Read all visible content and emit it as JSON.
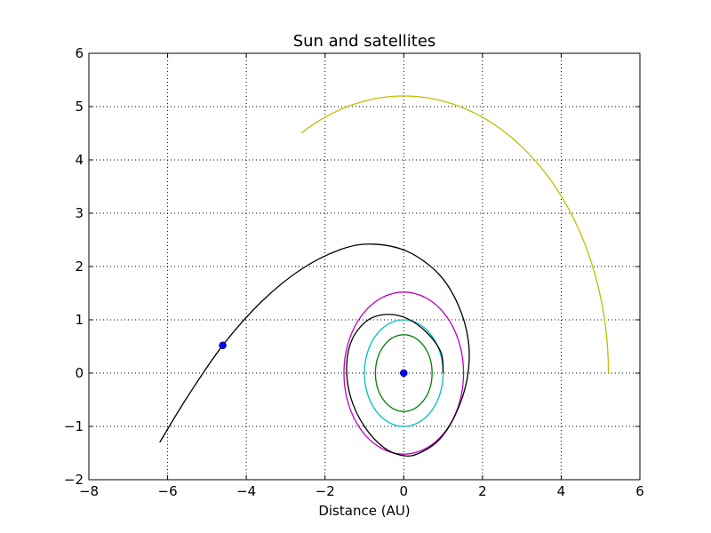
{
  "chart_data": {
    "type": "line",
    "title": "Sun and satellites",
    "xlabel": "Distance (AU)",
    "ylabel": "",
    "xlim": [
      -8,
      6
    ],
    "ylim": [
      -2,
      6
    ],
    "xticks": [
      -8,
      -6,
      -4,
      -2,
      0,
      2,
      4,
      6
    ],
    "yticks": [
      -2,
      -1,
      0,
      1,
      2,
      3,
      4,
      5,
      6
    ],
    "xtick_labels": [
      "−8",
      "−6",
      "−4",
      "−2",
      "0",
      "2",
      "4",
      "6"
    ],
    "ytick_labels": [
      "−2",
      "−1",
      "0",
      "1",
      "2",
      "3",
      "4",
      "5",
      "6"
    ],
    "grid": true,
    "orbits": [
      {
        "color": "#008000",
        "shape": "ellipse",
        "center": [
          0,
          0
        ],
        "rx": 0.72,
        "ry": 0.72
      },
      {
        "color": "#00bfbf",
        "shape": "ellipse",
        "center": [
          0,
          0
        ],
        "rx": 1.0,
        "ry": 1.0
      },
      {
        "color": "#bf00bf",
        "shape": "ellipse",
        "center": [
          0,
          0
        ],
        "rx": 1.52,
        "ry": 1.52
      },
      {
        "color": "#bfbf00",
        "shape": "arc",
        "center": [
          0,
          0
        ],
        "radius": 5.2,
        "start_deg": 0,
        "end_deg": 121
      }
    ],
    "spiral_trajectory": {
      "color": "#000000",
      "x": [
        -6.2,
        -5.5,
        -4.6,
        -3.6,
        -2.6,
        -1.6,
        -0.8,
        0.1,
        0.9,
        1.4,
        1.65,
        1.6,
        1.3,
        0.9,
        0.4,
        0.0,
        -0.5,
        -1.0,
        -1.35,
        -1.45,
        -1.3,
        -0.9,
        -0.4,
        0.1,
        0.6,
        0.95,
        1.0
      ],
      "y": [
        -1.3,
        -0.45,
        0.52,
        1.35,
        1.95,
        2.32,
        2.42,
        2.28,
        1.85,
        1.25,
        0.55,
        -0.15,
        -0.8,
        -1.25,
        -1.5,
        -1.55,
        -1.4,
        -1.0,
        -0.45,
        0.15,
        0.65,
        1.0,
        1.1,
        1.02,
        0.75,
        0.38,
        0.0
      ]
    },
    "points": [
      {
        "x": 0,
        "y": 0,
        "color": "#0000ff"
      },
      {
        "x": -4.6,
        "y": 0.52,
        "color": "#0000ff"
      }
    ]
  }
}
